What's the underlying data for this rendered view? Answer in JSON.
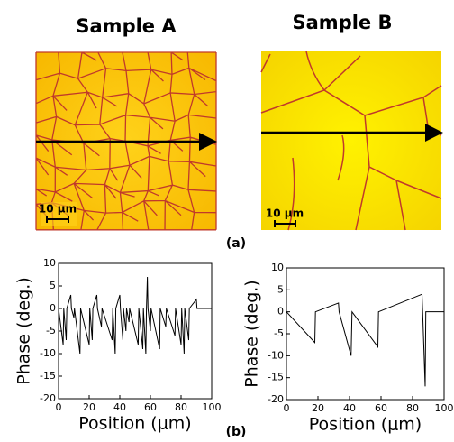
{
  "panels": [
    {
      "title": "Sample A",
      "scale_bar": "10 μm"
    },
    {
      "title": "Sample B",
      "scale_bar": "10 μm"
    }
  ],
  "labels": {
    "a": "(a)",
    "b": "(b)"
  },
  "chart_data": [
    {
      "type": "line",
      "xlabel": "Position (μm)",
      "ylabel": "Phase (deg.)",
      "color": "#000000",
      "xlim": [
        0,
        100
      ],
      "xticks": [
        0,
        20,
        40,
        60,
        80,
        100
      ],
      "ylim": [
        -20,
        10
      ],
      "yticks": [
        -20,
        -15,
        -10,
        -5,
        0,
        5,
        10
      ],
      "x": [
        0,
        3,
        3.4,
        5,
        5.4,
        8,
        8.4,
        10,
        10.4,
        14,
        14.4,
        20,
        20.4,
        22,
        22.4,
        25,
        25.4,
        28,
        28.4,
        35,
        35.4,
        37,
        37.4,
        40,
        40.4,
        42,
        42.4,
        44,
        44.4,
        46,
        46.4,
        52,
        52.4,
        55,
        55.4,
        57,
        57.4,
        58,
        58.4,
        60,
        60.4,
        66,
        66.4,
        70,
        70.4,
        76,
        76.4,
        80,
        80.4,
        82,
        82.4,
        85,
        85.4,
        90,
        90.4,
        100
      ],
      "values": [
        0,
        -8,
        0,
        -7,
        0,
        3,
        0,
        -2,
        0,
        -10,
        0,
        -8,
        0,
        -7,
        0,
        3,
        0,
        -4,
        0,
        -7,
        0,
        -10,
        0,
        3,
        0,
        -7,
        0,
        -5,
        0,
        -3,
        0,
        -8,
        0,
        -9,
        0,
        -10,
        0,
        7,
        0,
        -5,
        0,
        -9,
        0,
        -4,
        0,
        -6,
        0,
        -8,
        0,
        -10,
        0,
        -7,
        0,
        2,
        0,
        0
      ]
    },
    {
      "type": "line",
      "xlabel": "Position (μm)",
      "ylabel": "Phase (deg.)",
      "color": "#000000",
      "xlim": [
        0,
        100
      ],
      "xticks": [
        0,
        20,
        40,
        60,
        80,
        100
      ],
      "ylim": [
        -20,
        10
      ],
      "yticks": [
        -20,
        -15,
        -10,
        -5,
        0,
        5,
        10
      ],
      "x": [
        0,
        18,
        18.4,
        33,
        33.4,
        41,
        41.6,
        58,
        58.4,
        86,
        86.4,
        88,
        88.4,
        100
      ],
      "values": [
        0,
        -7,
        0,
        2,
        0,
        -10,
        0,
        -8,
        0,
        4,
        0,
        -17,
        0,
        0
      ]
    }
  ]
}
